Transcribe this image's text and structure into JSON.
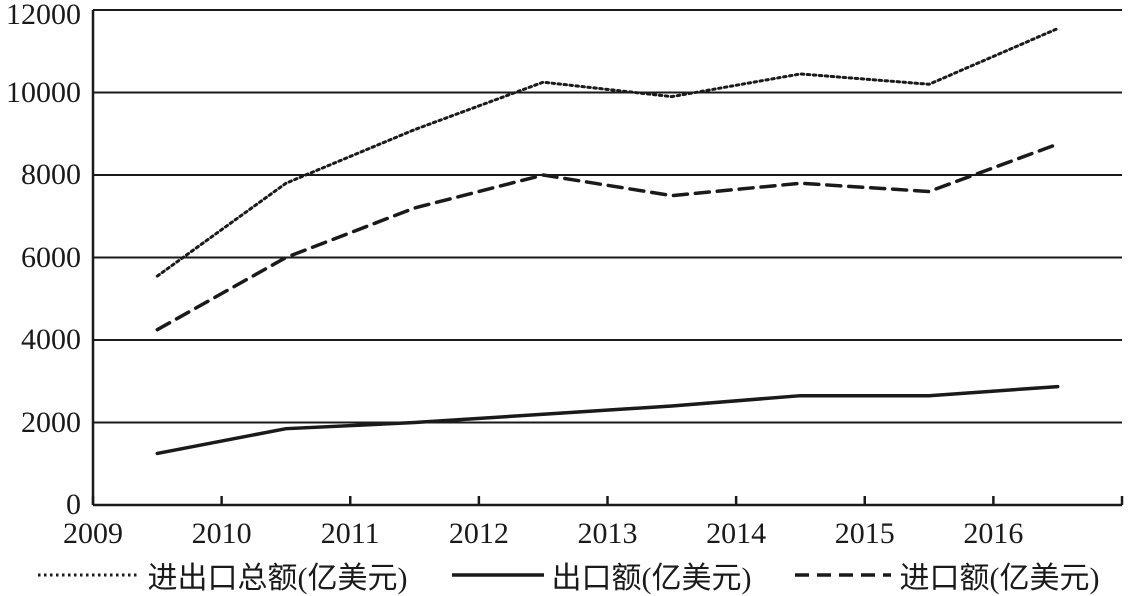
{
  "figure": {
    "background_color": "#ffffff",
    "line_color": "#1a1a1a",
    "axis_color": "#1a1a1a"
  },
  "chart_data": {
    "type": "line",
    "title": "",
    "xlabel": "",
    "ylabel": "",
    "categories": [
      "2009",
      "2010",
      "2011",
      "2012",
      "2013",
      "2014",
      "2015",
      "2016"
    ],
    "series": [
      {
        "name": "进出口总额(亿美元)",
        "style": "dotted",
        "values": [
          5550,
          7800,
          9100,
          10250,
          9900,
          10450,
          10200,
          11550
        ]
      },
      {
        "name": "出口额(亿美元)",
        "style": "solid",
        "values": [
          1250,
          1850,
          2000,
          2200,
          2400,
          2650,
          2650,
          2870
        ]
      },
      {
        "name": "进口额(亿美元)",
        "style": "dashed",
        "values": [
          4250,
          6000,
          7200,
          8000,
          7500,
          7800,
          7600,
          8750
        ]
      }
    ],
    "ylim": [
      0,
      12000
    ],
    "yticks": [
      0,
      2000,
      4000,
      6000,
      8000,
      10000,
      12000
    ],
    "grid": true,
    "legend_position": "bottom"
  }
}
